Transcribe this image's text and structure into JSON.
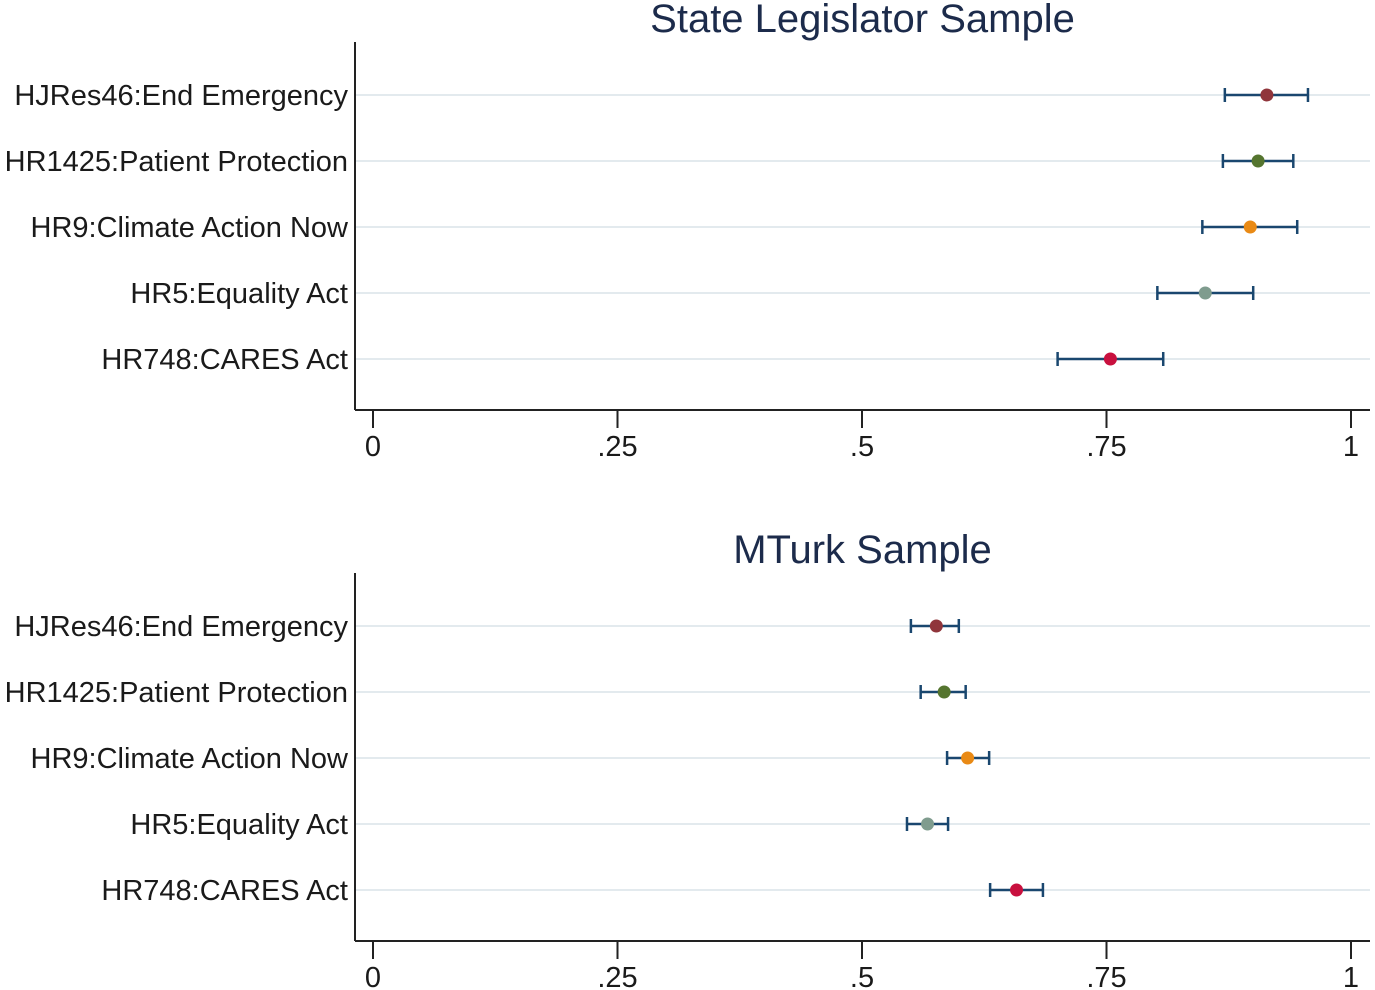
{
  "colors": {
    "title": "#1c2b4b",
    "text": "#1a1a1a",
    "axis": "#222222",
    "grid": "#e3eaee",
    "ci": "#1a476f",
    "background": "#ffffff"
  },
  "chart_data": [
    {
      "type": "scatter",
      "title": "State Legislator Sample",
      "categories": [
        "HJRes46:End Emergency",
        "HR1425:Patient Protection",
        "HR9:Climate Action Now",
        "HR5:Equality Act",
        "HR748:CARES Act"
      ],
      "values": [
        0.914,
        0.905,
        0.897,
        0.851,
        0.754
      ],
      "ci_lower": [
        0.871,
        0.869,
        0.848,
        0.802,
        0.7
      ],
      "ci_upper": [
        0.956,
        0.941,
        0.945,
        0.9,
        0.808
      ],
      "point_colors": [
        "#90353b",
        "#55752f",
        "#e98a15",
        "#7f9c8e",
        "#c8103e"
      ],
      "xticks": [
        0,
        0.25,
        0.5,
        0.75,
        1
      ],
      "xtick_labels": [
        "0",
        ".25",
        ".5",
        ".75",
        "1"
      ],
      "xlim": [
        0,
        1
      ],
      "grid": true
    },
    {
      "type": "scatter",
      "title": "MTurk Sample",
      "categories": [
        "HJRes46:End Emergency",
        "HR1425:Patient Protection",
        "HR9:Climate Action Now",
        "HR5:Equality Act",
        "HR748:CARES Act"
      ],
      "values": [
        0.576,
        0.584,
        0.608,
        0.567,
        0.658
      ],
      "ci_lower": [
        0.55,
        0.56,
        0.587,
        0.546,
        0.631
      ],
      "ci_upper": [
        0.599,
        0.606,
        0.63,
        0.588,
        0.685
      ],
      "point_colors": [
        "#90353b",
        "#55752f",
        "#e98a15",
        "#7f9c8e",
        "#c8103e"
      ],
      "xticks": [
        0,
        0.25,
        0.5,
        0.75,
        1
      ],
      "xtick_labels": [
        "0",
        ".25",
        ".5",
        ".75",
        "1"
      ],
      "xlim": [
        0,
        1
      ],
      "grid": true
    }
  ]
}
